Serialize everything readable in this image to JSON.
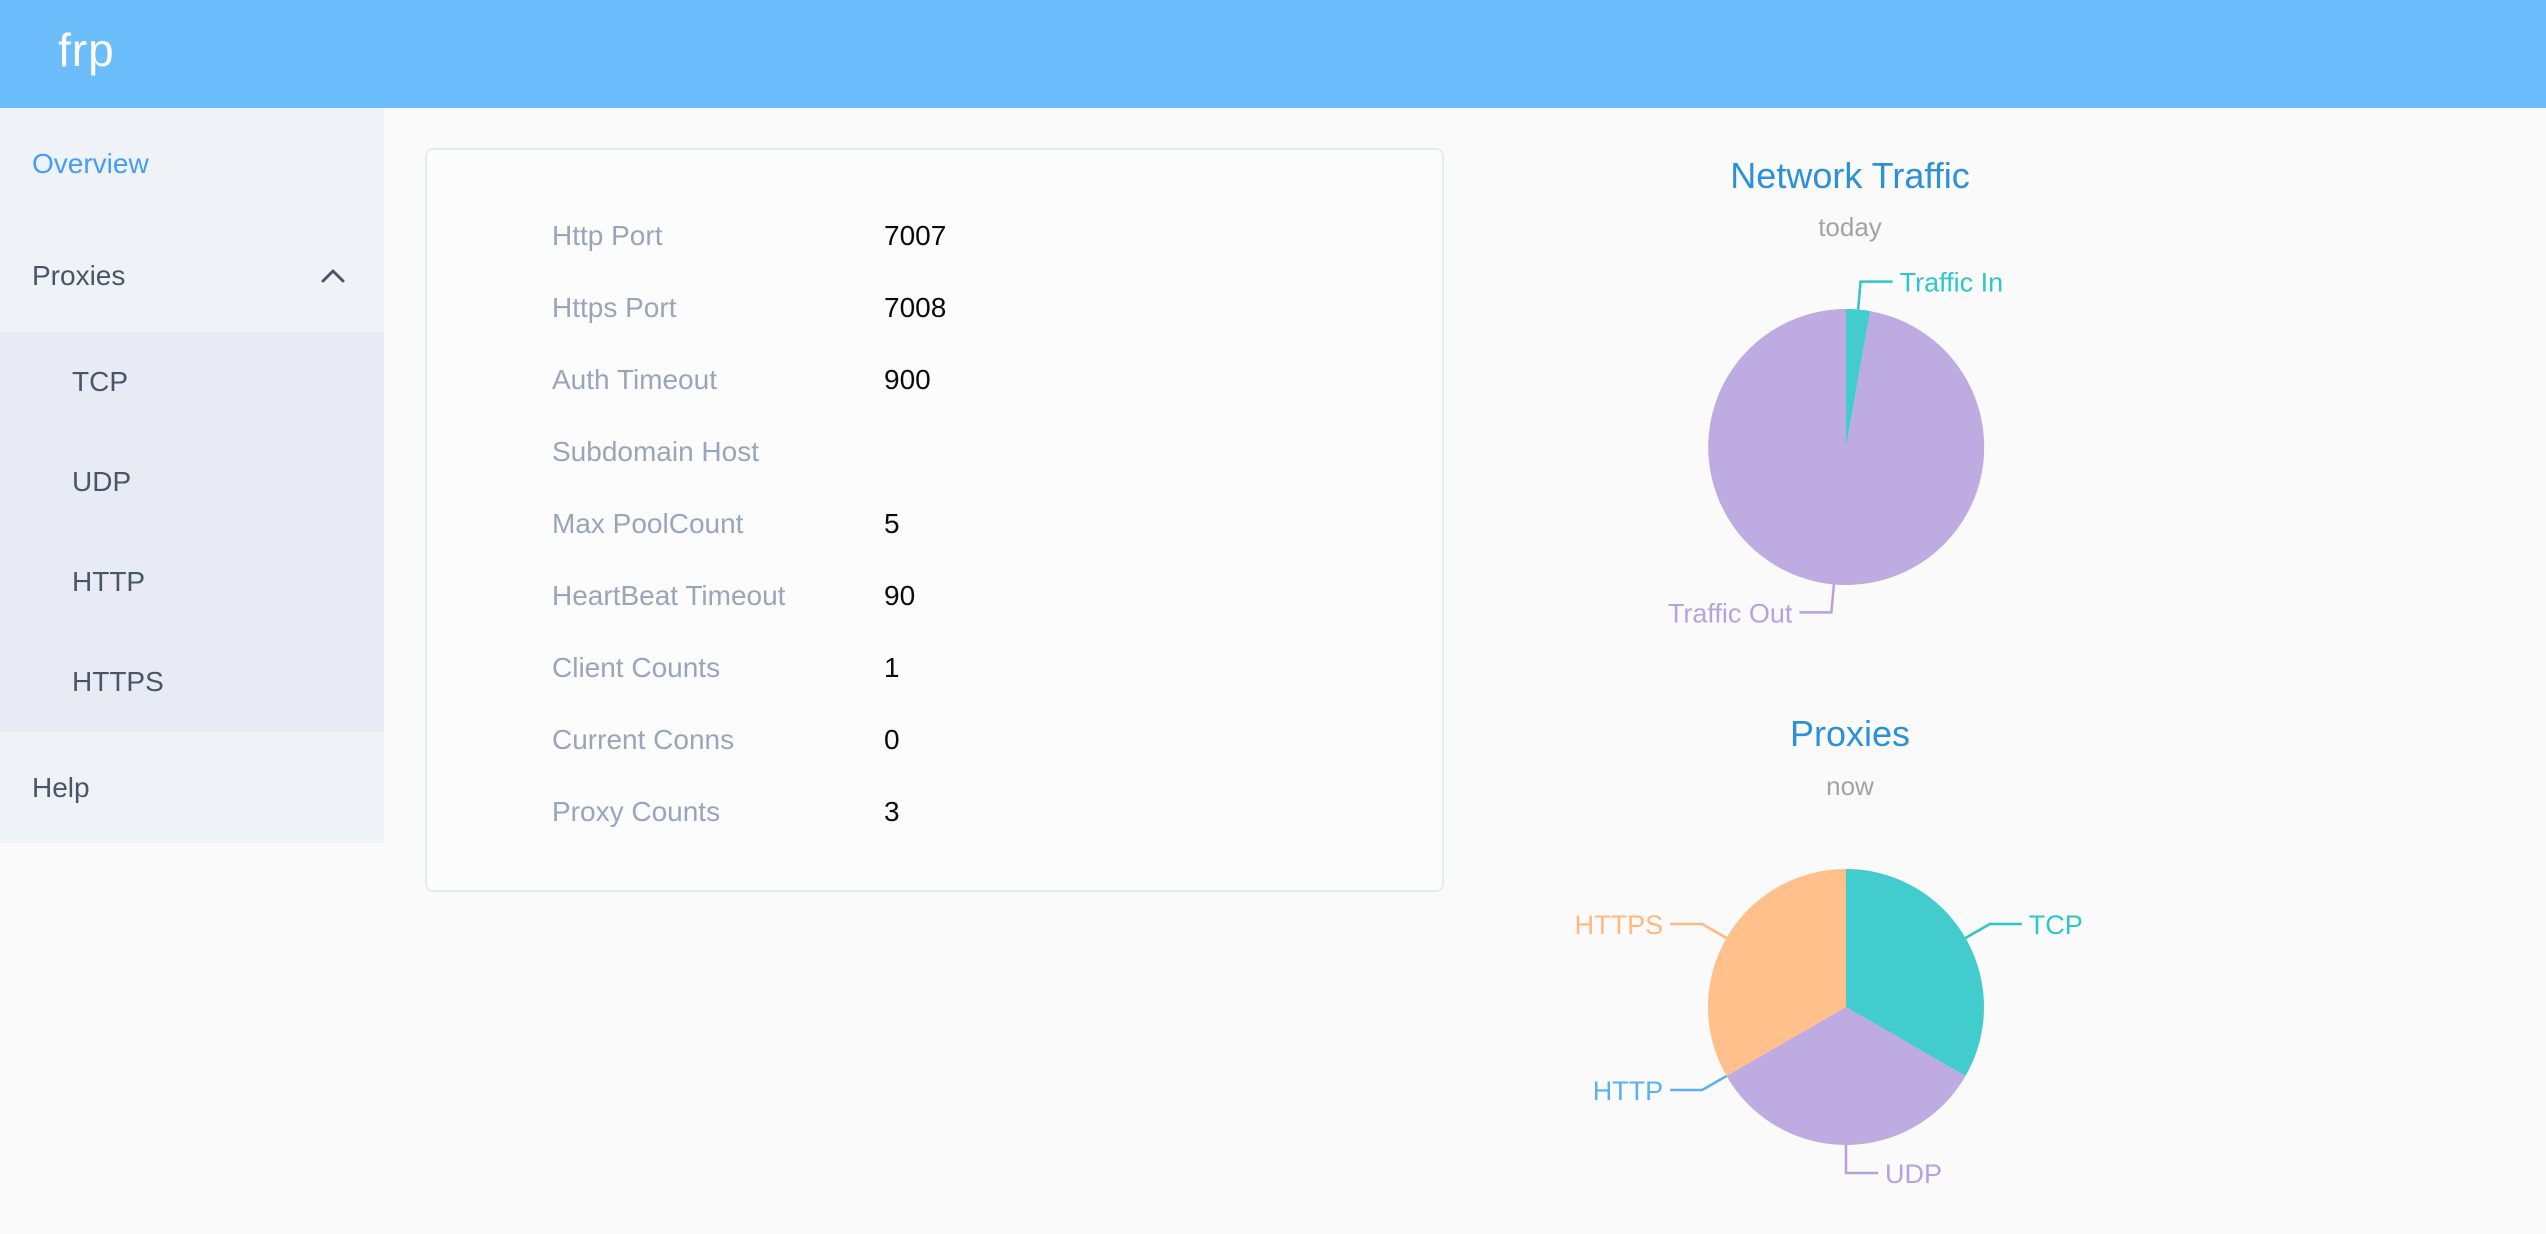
{
  "header": {
    "logo": "frp",
    "bg_color": "#6cbdfc"
  },
  "sidebar": {
    "items": [
      {
        "label": "Overview",
        "active": true
      },
      {
        "label": "Proxies",
        "expanded": true,
        "children": [
          "TCP",
          "UDP",
          "HTTP",
          "HTTPS"
        ]
      },
      {
        "label": "Help"
      }
    ],
    "active_color": "#459df8",
    "text_color": "#475669"
  },
  "overview_card": {
    "rows": [
      {
        "label": "Http Port",
        "value": "7007"
      },
      {
        "label": "Https Port",
        "value": "7008"
      },
      {
        "label": "Auth Timeout",
        "value": "900"
      },
      {
        "label": "Subdomain Host",
        "value": ""
      },
      {
        "label": "Max PoolCount",
        "value": "5"
      },
      {
        "label": "HeartBeat Timeout",
        "value": "90"
      },
      {
        "label": "Client Counts",
        "value": "1"
      },
      {
        "label": "Current Conns",
        "value": "0"
      },
      {
        "label": "Proxy Counts",
        "value": "3"
      }
    ]
  },
  "chart_data": [
    {
      "type": "pie",
      "title": "Network Traffic",
      "subtitle": "today",
      "values_estimated": true,
      "unit": "percent",
      "slices": [
        {
          "label": "Traffic In",
          "value": 2.8,
          "color": "#2ec7c9"
        },
        {
          "label": "Traffic Out",
          "value": 97.2,
          "color": "#b6a2de"
        }
      ],
      "legend_position": "none",
      "labels_outside": true
    },
    {
      "type": "pie",
      "title": "Proxies",
      "subtitle": "now",
      "unit": "proxy count",
      "slices": [
        {
          "label": "TCP",
          "value": 1,
          "color": "#2ec7c9"
        },
        {
          "label": "UDP",
          "value": 1,
          "color": "#b6a2de"
        },
        {
          "label": "HTTP",
          "value": 0,
          "color": "#5ab1ef"
        },
        {
          "label": "HTTPS",
          "value": 1,
          "color": "#ffb980"
        }
      ],
      "legend_position": "none",
      "labels_outside": true
    }
  ]
}
